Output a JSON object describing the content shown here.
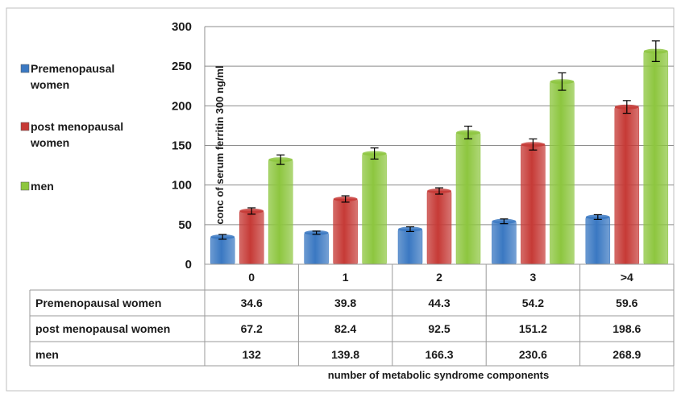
{
  "chart_data": {
    "type": "bar",
    "categories": [
      "0",
      "1",
      "2",
      "3",
      ">4"
    ],
    "series": [
      {
        "name": "Premenopausal women",
        "legend_label": [
          "Premenopausal",
          "women"
        ],
        "color": "#3a78c2",
        "values": [
          34.6,
          39.8,
          44.3,
          54.2,
          59.6
        ],
        "errors": [
          3,
          2,
          3,
          3,
          3
        ]
      },
      {
        "name": "post menopausal women",
        "legend_label": [
          "post menopausal",
          "women"
        ],
        "color": "#c63a36",
        "values": [
          67.2,
          82.4,
          92.5,
          151.2,
          198.6
        ],
        "errors": [
          4,
          4,
          4,
          7,
          8
        ]
      },
      {
        "name": "men",
        "legend_label": [
          "men"
        ],
        "color": "#8dc63f",
        "values": [
          132,
          139.8,
          166.3,
          230.6,
          268.9
        ],
        "errors": [
          6,
          7,
          8,
          11,
          13
        ]
      }
    ],
    "ylabel": "conc of serum ferritin 300 ng/ml",
    "xlabel": "number of metabolic syndrome components",
    "ylim": [
      0,
      300
    ],
    "yticks": [
      0,
      50,
      100,
      150,
      200,
      250,
      300
    ],
    "data_table": true,
    "grid": true,
    "legend_position": "left"
  }
}
